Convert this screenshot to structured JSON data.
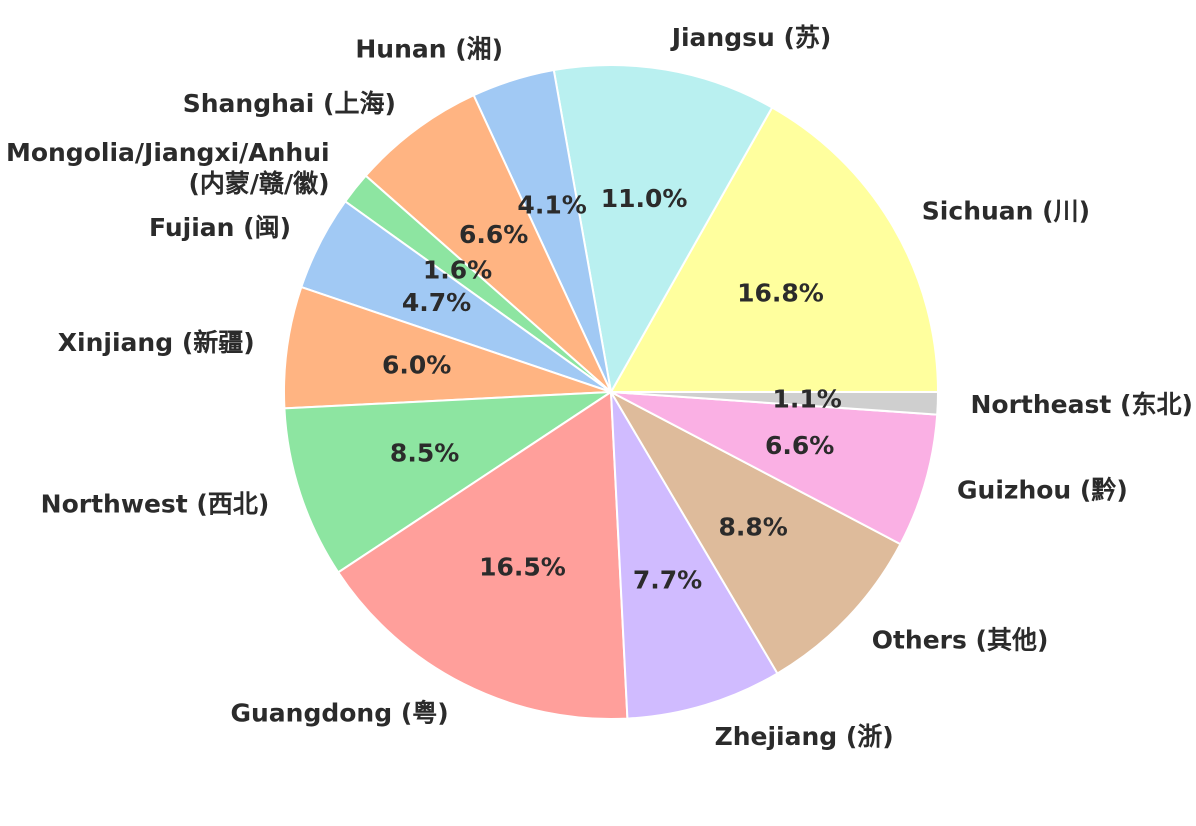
{
  "chart_data": {
    "type": "pie",
    "title": "",
    "start_angle_deg": 0,
    "direction": "counterclockwise",
    "slices": [
      {
        "label": "Sichuan (川)",
        "value": 16.8,
        "percent_label": "16.8%",
        "color": "#FFFF9E"
      },
      {
        "label": "Jiangsu (苏)",
        "value": 11.0,
        "percent_label": "11.0%",
        "color": "#B9F0F0"
      },
      {
        "label": "Hunan (湘)",
        "value": 4.1,
        "percent_label": "4.1%",
        "color": "#A1C9F4"
      },
      {
        "label": "Shanghai (上海)",
        "value": 6.6,
        "percent_label": "6.6%",
        "color": "#FFB482"
      },
      {
        "label_lines": [
          "Mongolia/Jiangxi/Anhui",
          "(内蒙/赣/徽)"
        ],
        "value": 1.6,
        "percent_label": "1.6%",
        "color": "#8DE5A1"
      },
      {
        "label": "Fujian (闽)",
        "value": 4.7,
        "percent_label": "4.7%",
        "color": "#A1C9F4"
      },
      {
        "label": "Xinjiang (新疆)",
        "value": 6.0,
        "percent_label": "6.0%",
        "color": "#FFB482"
      },
      {
        "label": "Northwest (西北)",
        "value": 8.5,
        "percent_label": "8.5%",
        "color": "#8DE5A1"
      },
      {
        "label": "Guangdong (粤)",
        "value": 16.5,
        "percent_label": "16.5%",
        "color": "#FF9F9B"
      },
      {
        "label": "Zhejiang (浙)",
        "value": 7.7,
        "percent_label": "7.7%",
        "color": "#D0BBFF"
      },
      {
        "label": "Others (其他)",
        "value": 8.8,
        "percent_label": "8.8%",
        "color": "#DEBB9B"
      },
      {
        "label": "Guizhou (黔)",
        "value": 6.6,
        "percent_label": "6.6%",
        "color": "#FAB0E4"
      },
      {
        "label": "Northeast (东北)",
        "value": 1.1,
        "percent_label": "1.1%",
        "color": "#CFCFCF"
      }
    ]
  }
}
